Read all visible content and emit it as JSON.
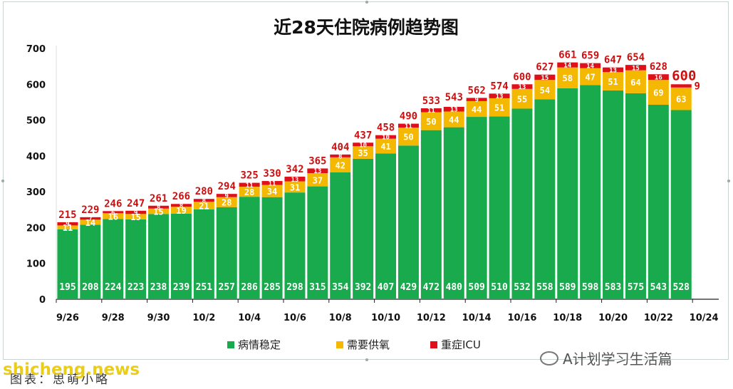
{
  "chart_data": {
    "type": "bar",
    "stacked": true,
    "title": "近28天住院病例趋势图",
    "categories": [
      "9/26",
      "9/27",
      "9/28",
      "9/29",
      "9/30",
      "10/1",
      "10/2",
      "10/3",
      "10/4",
      "10/5",
      "10/6",
      "10/7",
      "10/8",
      "10/9",
      "10/10",
      "10/11",
      "10/12",
      "10/13",
      "10/14",
      "10/15",
      "10/16",
      "10/17",
      "10/18",
      "10/19",
      "10/20",
      "10/21",
      "10/22",
      "10/23"
    ],
    "x_tick_labels": [
      "9/26",
      "9/28",
      "9/30",
      "10/2",
      "10/4",
      "10/6",
      "10/8",
      "10/10",
      "10/12",
      "10/14",
      "10/16",
      "10/18",
      "10/20",
      "10/22",
      "10/24"
    ],
    "series": [
      {
        "name": "病情稳定",
        "color": "#1aaa4e",
        "values": [
          195,
          208,
          224,
          223,
          238,
          239,
          251,
          257,
          286,
          285,
          298,
          315,
          354,
          392,
          407,
          429,
          472,
          480,
          509,
          510,
          532,
          558,
          589,
          598,
          583,
          575,
          543,
          528
        ]
      },
      {
        "name": "需要供氧",
        "color": "#f5b800",
        "values": [
          11,
          14,
          16,
          15,
          15,
          19,
          21,
          28,
          28,
          34,
          31,
          37,
          42,
          35,
          41,
          50,
          50,
          44,
          44,
          51,
          55,
          54,
          58,
          47,
          51,
          64,
          69,
          63
        ]
      },
      {
        "name": "重症ICU",
        "color": "#e0101a",
        "values": [
          9,
          7,
          6,
          9,
          8,
          8,
          8,
          9,
          11,
          11,
          13,
          13,
          8,
          10,
          10,
          11,
          11,
          13,
          9,
          13,
          13,
          15,
          14,
          14,
          13,
          15,
          16,
          9
        ]
      }
    ],
    "totals": [
      215,
      229,
      246,
      247,
      261,
      266,
      280,
      294,
      325,
      330,
      342,
      365,
      404,
      437,
      458,
      490,
      533,
      543,
      562,
      574,
      600,
      627,
      661,
      659,
      647,
      654,
      628,
      600
    ],
    "ylim": [
      0,
      700
    ],
    "yticks": [
      0,
      100,
      200,
      300,
      400,
      500,
      600,
      700
    ],
    "grid": false,
    "legend": "bottom"
  },
  "footer": {
    "wechat": "A计划学习生活篇",
    "source": "图表：思萌小略",
    "watermark": "shicheng.news"
  }
}
